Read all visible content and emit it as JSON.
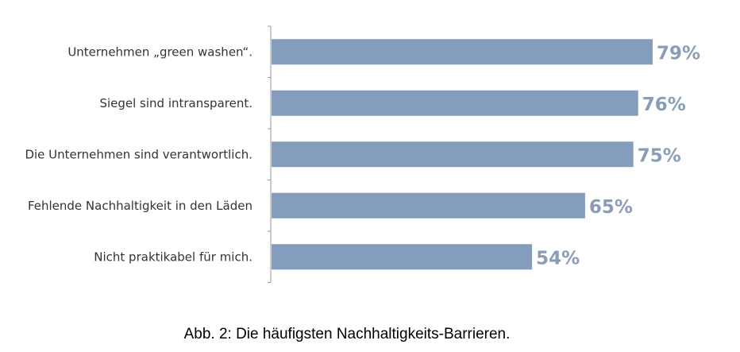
{
  "chart_data": {
    "type": "bar",
    "orientation": "horizontal",
    "categories": [
      "Unternehmen „green washen“.",
      "Siegel sind intransparent.",
      "Die Unternehmen sind verantwortlich.",
      "Fehlende Nachhaltigkeit in den Läden",
      "Nicht praktikabel für mich."
    ],
    "values": [
      79,
      76,
      75,
      65,
      54
    ],
    "data_labels": [
      "79%",
      "76%",
      "75%",
      "65%",
      "54%"
    ],
    "unit": "%",
    "xlim": [
      0,
      100
    ],
    "grid": false,
    "legend": "none",
    "colors": {
      "bar": "#859dbd",
      "label": "#8a9cb8",
      "axis": "#999999"
    }
  },
  "caption": "Abb. 2: Die häufigsten Nachhaltigkeits-Barrieren."
}
